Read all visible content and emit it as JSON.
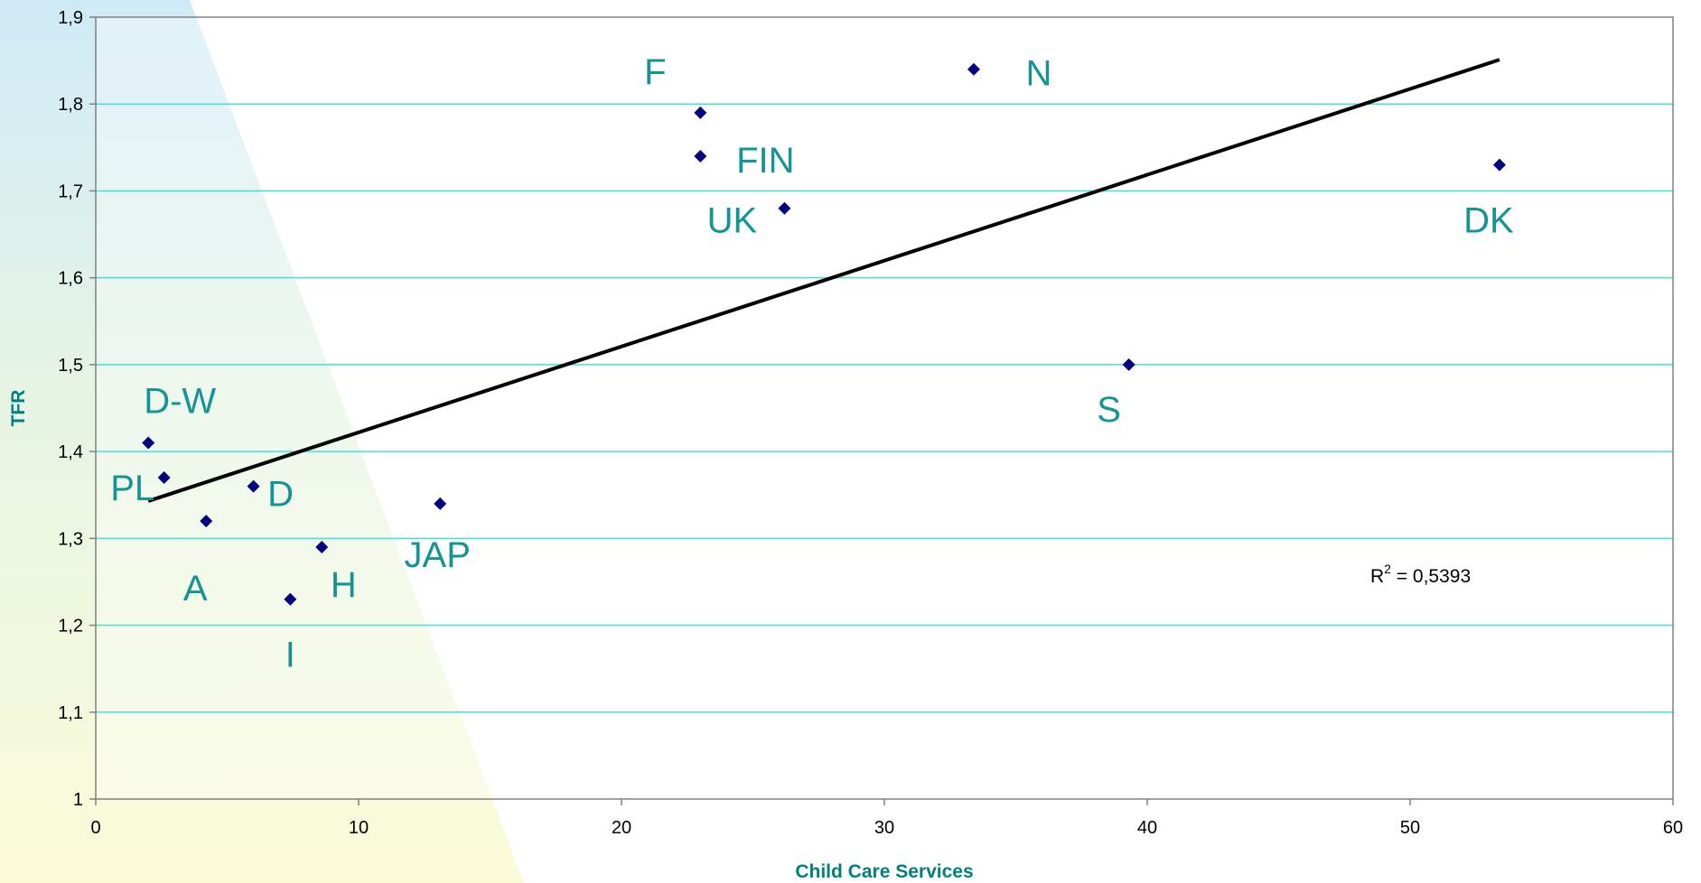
{
  "chart_data": {
    "type": "scatter",
    "xlabel": "Child Care Services",
    "ylabel": "TFR",
    "xlim": [
      0,
      60
    ],
    "ylim": [
      1,
      1.9
    ],
    "x_ticks": [
      0,
      10,
      20,
      30,
      40,
      50,
      60
    ],
    "y_ticks": [
      1,
      1.1,
      1.2,
      1.3,
      1.4,
      1.5,
      1.6,
      1.7,
      1.8,
      1.9
    ],
    "x_tick_labels": [
      "0",
      "10",
      "20",
      "30",
      "40",
      "50",
      "60"
    ],
    "y_tick_labels": [
      "1",
      "1,1",
      "1,2",
      "1,3",
      "1,4",
      "1,5",
      "1,6",
      "1,7",
      "1,8",
      "1,9"
    ],
    "grid": "horizontal",
    "points": [
      {
        "label": "D-W",
        "x": 2.0,
        "y": 1.41
      },
      {
        "label": "PL",
        "x": 2.6,
        "y": 1.37
      },
      {
        "label": "A",
        "x": 4.2,
        "y": 1.32
      },
      {
        "label": "D",
        "x": 6.0,
        "y": 1.36
      },
      {
        "label": "I",
        "x": 7.4,
        "y": 1.23
      },
      {
        "label": "H",
        "x": 8.6,
        "y": 1.29
      },
      {
        "label": "JAP",
        "x": 13.1,
        "y": 1.34
      },
      {
        "label": "F",
        "x": 23.0,
        "y": 1.79
      },
      {
        "label": "FIN",
        "x": 23.0,
        "y": 1.74
      },
      {
        "label": "UK",
        "x": 26.2,
        "y": 1.68
      },
      {
        "label": "N",
        "x": 33.4,
        "y": 1.84
      },
      {
        "label": "S",
        "x": 39.3,
        "y": 1.5
      },
      {
        "label": "DK",
        "x": 53.4,
        "y": 1.73
      }
    ],
    "trendline": {
      "x": [
        2.0,
        53.4
      ],
      "y": [
        1.343,
        1.851
      ]
    },
    "r2_prefix": "R",
    "r2_sup": "2",
    "r2_value": " = 0,5393",
    "colors": {
      "marker": "#000080",
      "label": "#149494",
      "grid": "#40e0e0",
      "trend": "#000000",
      "axis_title": "#008080"
    }
  }
}
